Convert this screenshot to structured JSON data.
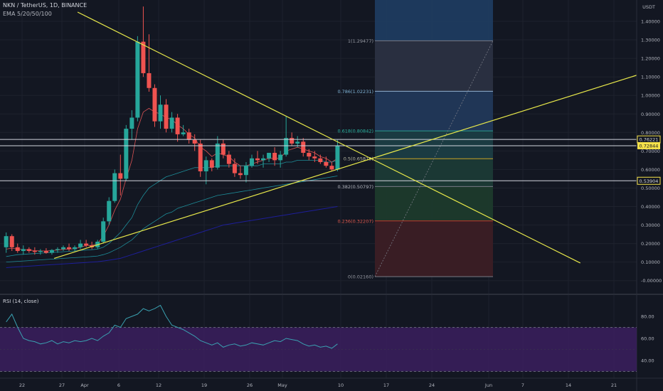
{
  "header": {
    "title": "NKN / TetherUS, 1D, BINANCE",
    "indicator": "EMA 5/20/50/100",
    "currency": "USDT"
  },
  "colors": {
    "background": "#131722",
    "up": "#26a69a",
    "down": "#ef5350",
    "trendline": "#e8e84a",
    "ema5": "#f05a5a",
    "ema20": "#1f9aa6",
    "ema50": "#1f1fa6",
    "rsi": "#3aa0b0",
    "rsi_band": "#3b1f5e"
  },
  "chart_data": [
    {
      "type": "candlestick",
      "title": "NKN / TetherUS, 1D, BINANCE",
      "x_tick_labels": [
        "22",
        "27",
        "Apr",
        "6",
        "12",
        "19",
        "26",
        "May",
        "10",
        "17",
        "24",
        "Jun",
        "7",
        "14",
        "21"
      ],
      "y_tick_labels": [
        "1.40000",
        "1.30000",
        "1.20000",
        "1.10000",
        "1.00000",
        "0.90000",
        "0.80000",
        "0.70000",
        "0.60000",
        "0.50000",
        "0.40000",
        "0.30000",
        "0.20000",
        "0.10000",
        "-0.00000"
      ],
      "y_ticks": [
        1.4,
        1.3,
        1.2,
        1.1,
        1.0,
        0.9,
        0.8,
        0.7,
        0.6,
        0.5,
        0.4,
        0.3,
        0.2,
        0.1,
        0.0
      ],
      "ylim": [
        -0.03,
        1.52
      ],
      "candles": [
        {
          "o": 0.18,
          "h": 0.26,
          "l": 0.15,
          "c": 0.24
        },
        {
          "o": 0.24,
          "h": 0.25,
          "l": 0.16,
          "c": 0.18
        },
        {
          "o": 0.18,
          "h": 0.2,
          "l": 0.15,
          "c": 0.16
        },
        {
          "o": 0.16,
          "h": 0.19,
          "l": 0.14,
          "c": 0.17
        },
        {
          "o": 0.17,
          "h": 0.18,
          "l": 0.15,
          "c": 0.16
        },
        {
          "o": 0.16,
          "h": 0.18,
          "l": 0.14,
          "c": 0.155
        },
        {
          "o": 0.155,
          "h": 0.17,
          "l": 0.14,
          "c": 0.16
        },
        {
          "o": 0.16,
          "h": 0.175,
          "l": 0.145,
          "c": 0.15
        },
        {
          "o": 0.15,
          "h": 0.17,
          "l": 0.14,
          "c": 0.165
        },
        {
          "o": 0.165,
          "h": 0.18,
          "l": 0.15,
          "c": 0.17
        },
        {
          "o": 0.17,
          "h": 0.19,
          "l": 0.16,
          "c": 0.18
        },
        {
          "o": 0.18,
          "h": 0.2,
          "l": 0.16,
          "c": 0.17
        },
        {
          "o": 0.17,
          "h": 0.19,
          "l": 0.16,
          "c": 0.18
        },
        {
          "o": 0.18,
          "h": 0.22,
          "l": 0.17,
          "c": 0.2
        },
        {
          "o": 0.2,
          "h": 0.22,
          "l": 0.18,
          "c": 0.19
        },
        {
          "o": 0.19,
          "h": 0.21,
          "l": 0.17,
          "c": 0.18
        },
        {
          "o": 0.18,
          "h": 0.22,
          "l": 0.17,
          "c": 0.21
        },
        {
          "o": 0.21,
          "h": 0.34,
          "l": 0.2,
          "c": 0.32
        },
        {
          "o": 0.32,
          "h": 0.45,
          "l": 0.3,
          "c": 0.43
        },
        {
          "o": 0.43,
          "h": 0.6,
          "l": 0.42,
          "c": 0.58
        },
        {
          "o": 0.58,
          "h": 0.68,
          "l": 0.46,
          "c": 0.55
        },
        {
          "o": 0.55,
          "h": 0.84,
          "l": 0.54,
          "c": 0.82
        },
        {
          "o": 0.82,
          "h": 0.92,
          "l": 0.76,
          "c": 0.88
        },
        {
          "o": 0.88,
          "h": 1.32,
          "l": 0.86,
          "c": 1.29
        },
        {
          "o": 1.29,
          "h": 1.48,
          "l": 1.1,
          "c": 1.12
        },
        {
          "o": 1.12,
          "h": 1.33,
          "l": 1.02,
          "c": 1.04
        },
        {
          "o": 1.04,
          "h": 1.06,
          "l": 0.83,
          "c": 0.86
        },
        {
          "o": 0.86,
          "h": 1.0,
          "l": 0.82,
          "c": 0.95
        },
        {
          "o": 0.95,
          "h": 0.98,
          "l": 0.8,
          "c": 0.82
        },
        {
          "o": 0.82,
          "h": 0.91,
          "l": 0.8,
          "c": 0.88
        },
        {
          "o": 0.88,
          "h": 0.9,
          "l": 0.75,
          "c": 0.79
        },
        {
          "o": 0.79,
          "h": 0.84,
          "l": 0.78,
          "c": 0.8
        },
        {
          "o": 0.8,
          "h": 0.82,
          "l": 0.74,
          "c": 0.76
        },
        {
          "o": 0.76,
          "h": 0.79,
          "l": 0.7,
          "c": 0.74
        },
        {
          "o": 0.74,
          "h": 0.76,
          "l": 0.56,
          "c": 0.59
        },
        {
          "o": 0.59,
          "h": 0.67,
          "l": 0.52,
          "c": 0.65
        },
        {
          "o": 0.65,
          "h": 0.66,
          "l": 0.59,
          "c": 0.61
        },
        {
          "o": 0.61,
          "h": 0.78,
          "l": 0.6,
          "c": 0.74
        },
        {
          "o": 0.74,
          "h": 0.76,
          "l": 0.66,
          "c": 0.68
        },
        {
          "o": 0.68,
          "h": 0.7,
          "l": 0.61,
          "c": 0.63
        },
        {
          "o": 0.63,
          "h": 0.66,
          "l": 0.56,
          "c": 0.58
        },
        {
          "o": 0.58,
          "h": 0.62,
          "l": 0.55,
          "c": 0.57
        },
        {
          "o": 0.57,
          "h": 0.64,
          "l": 0.53,
          "c": 0.62
        },
        {
          "o": 0.62,
          "h": 0.68,
          "l": 0.61,
          "c": 0.66
        },
        {
          "o": 0.66,
          "h": 0.7,
          "l": 0.63,
          "c": 0.65
        },
        {
          "o": 0.65,
          "h": 0.68,
          "l": 0.61,
          "c": 0.66
        },
        {
          "o": 0.66,
          "h": 0.69,
          "l": 0.64,
          "c": 0.69
        },
        {
          "o": 0.69,
          "h": 0.72,
          "l": 0.62,
          "c": 0.65
        },
        {
          "o": 0.65,
          "h": 0.7,
          "l": 0.61,
          "c": 0.68
        },
        {
          "o": 0.68,
          "h": 0.89,
          "l": 0.67,
          "c": 0.77
        },
        {
          "o": 0.77,
          "h": 0.8,
          "l": 0.73,
          "c": 0.74
        },
        {
          "o": 0.74,
          "h": 0.78,
          "l": 0.72,
          "c": 0.75
        },
        {
          "o": 0.75,
          "h": 0.77,
          "l": 0.67,
          "c": 0.69
        },
        {
          "o": 0.69,
          "h": 0.71,
          "l": 0.65,
          "c": 0.67
        },
        {
          "o": 0.67,
          "h": 0.7,
          "l": 0.64,
          "c": 0.66
        },
        {
          "o": 0.66,
          "h": 0.68,
          "l": 0.63,
          "c": 0.64
        },
        {
          "o": 0.64,
          "h": 0.67,
          "l": 0.61,
          "c": 0.62
        },
        {
          "o": 0.62,
          "h": 0.64,
          "l": 0.59,
          "c": 0.6
        },
        {
          "o": 0.6,
          "h": 0.76,
          "l": 0.59,
          "c": 0.73
        }
      ],
      "ema_series": [
        {
          "values": [
            0.17,
            0.175,
            0.17,
            0.168,
            0.165,
            0.162,
            0.16,
            0.16,
            0.162,
            0.165,
            0.168,
            0.17,
            0.172,
            0.18,
            0.19,
            0.19,
            0.2,
            0.24,
            0.3,
            0.38,
            0.44,
            0.55,
            0.65,
            0.82,
            0.91,
            0.93,
            0.91,
            0.9,
            0.88,
            0.87,
            0.84,
            0.82,
            0.79,
            0.77,
            0.72,
            0.7,
            0.67,
            0.69,
            0.68,
            0.67,
            0.64,
            0.62,
            0.62,
            0.63,
            0.64,
            0.65,
            0.66,
            0.66,
            0.66,
            0.7,
            0.71,
            0.72,
            0.71,
            0.7,
            0.69,
            0.67,
            0.66,
            0.64,
            0.66
          ]
        },
        {
          "values": [
            0.13,
            0.135,
            0.14,
            0.142,
            0.144,
            0.146,
            0.148,
            0.15,
            0.152,
            0.154,
            0.156,
            0.158,
            0.16,
            0.163,
            0.165,
            0.167,
            0.17,
            0.18,
            0.2,
            0.23,
            0.26,
            0.3,
            0.34,
            0.41,
            0.46,
            0.5,
            0.52,
            0.54,
            0.56,
            0.57,
            0.58,
            0.59,
            0.6,
            0.61,
            0.61,
            0.61,
            0.61,
            0.62,
            0.62,
            0.62,
            0.62,
            0.62,
            0.62,
            0.62,
            0.62,
            0.63,
            0.63,
            0.63,
            0.63,
            0.64,
            0.64,
            0.65,
            0.65,
            0.65,
            0.65,
            0.65,
            0.64,
            0.64,
            0.65
          ]
        },
        {
          "values": [
            0.1,
            0.102,
            0.104,
            0.106,
            0.108,
            0.11,
            0.112,
            0.114,
            0.116,
            0.118,
            0.12,
            0.122,
            0.124,
            0.126,
            0.128,
            0.13,
            0.133,
            0.14,
            0.15,
            0.165,
            0.18,
            0.2,
            0.22,
            0.25,
            0.28,
            0.3,
            0.32,
            0.34,
            0.36,
            0.37,
            0.39,
            0.4,
            0.41,
            0.42,
            0.43,
            0.44,
            0.45,
            0.46,
            0.465,
            0.47,
            0.475,
            0.48,
            0.485,
            0.49,
            0.495,
            0.5,
            0.505,
            0.51,
            0.515,
            0.52,
            0.525,
            0.53,
            0.535,
            0.54,
            0.545,
            0.55,
            0.555,
            0.56,
            0.565
          ]
        },
        {
          "values": [
            0.07,
            0.072,
            0.074,
            0.076,
            0.078,
            0.08,
            0.082,
            0.084,
            0.086,
            0.088,
            0.09,
            0.092,
            0.094,
            0.096,
            0.098,
            0.1,
            0.102,
            0.106,
            0.11,
            0.115,
            0.12,
            0.13,
            0.14,
            0.15,
            0.16,
            0.17,
            0.18,
            0.19,
            0.2,
            0.21,
            0.22,
            0.23,
            0.24,
            0.25,
            0.26,
            0.27,
            0.28,
            0.29,
            0.3,
            0.305,
            0.31,
            0.315,
            0.32,
            0.325,
            0.33,
            0.335,
            0.34,
            0.345,
            0.35,
            0.355,
            0.36,
            0.365,
            0.37,
            0.375,
            0.38,
            0.385,
            0.39,
            0.395,
            0.4
          ]
        }
      ],
      "fib_levels": [
        {
          "label": "1(1.29477)",
          "value": 1.29477
        },
        {
          "label": "0.786(1.02231)",
          "value": 1.02231
        },
        {
          "label": "0.618(0.80842)",
          "value": 0.80842
        },
        {
          "label": "0.5(0.65819)",
          "value": 0.65819
        },
        {
          "label": "0.382(0.50797)",
          "value": 0.50797
        },
        {
          "label": "0.236(0.32207)",
          "value": 0.32207
        },
        {
          "label": "0(0.02160)",
          "value": 0.0216
        }
      ],
      "horizontal_levels": [
        0.76221,
        0.72844,
        0.53904
      ],
      "price_labels": [
        {
          "text": "0.76221",
          "value": 0.76221,
          "style": "outline"
        },
        {
          "text": "0.72844",
          "value": 0.72844,
          "style": "filled"
        },
        {
          "text": "0.53904",
          "value": 0.53904,
          "style": "outline"
        }
      ],
      "trendlines": [
        {
          "name": "",
          "points": [
            [
              12.5,
              1.45
            ],
            [
              62.4,
              0.66
            ],
            [
              100.5,
              0.095
            ]
          ]
        },
        {
          "name": "",
          "points": [
            [
              8.4,
              0.12
            ],
            [
              62.4,
              0.63
            ],
            [
              114.6,
              1.15
            ]
          ]
        }
      ]
    },
    {
      "type": "line",
      "title": "RSI (14, close)",
      "y_tick_labels": [
        "80.00",
        "60.00",
        "40.00"
      ],
      "y_ticks": [
        80,
        60,
        40
      ],
      "ylim": [
        27,
        90
      ],
      "band": [
        30,
        70
      ],
      "values": [
        75,
        82,
        70,
        60,
        58,
        57,
        55,
        56,
        58,
        55,
        57,
        56,
        58,
        57,
        58,
        60,
        58,
        62,
        65,
        72,
        70,
        78,
        80,
        82,
        87,
        85,
        87,
        90,
        80,
        72,
        70,
        68,
        65,
        62,
        58,
        56,
        54,
        56,
        52,
        54,
        55,
        53,
        54,
        56,
        55,
        54,
        56,
        58,
        57,
        60,
        59,
        58,
        55,
        53,
        54,
        52,
        53,
        51,
        55
      ]
    }
  ]
}
